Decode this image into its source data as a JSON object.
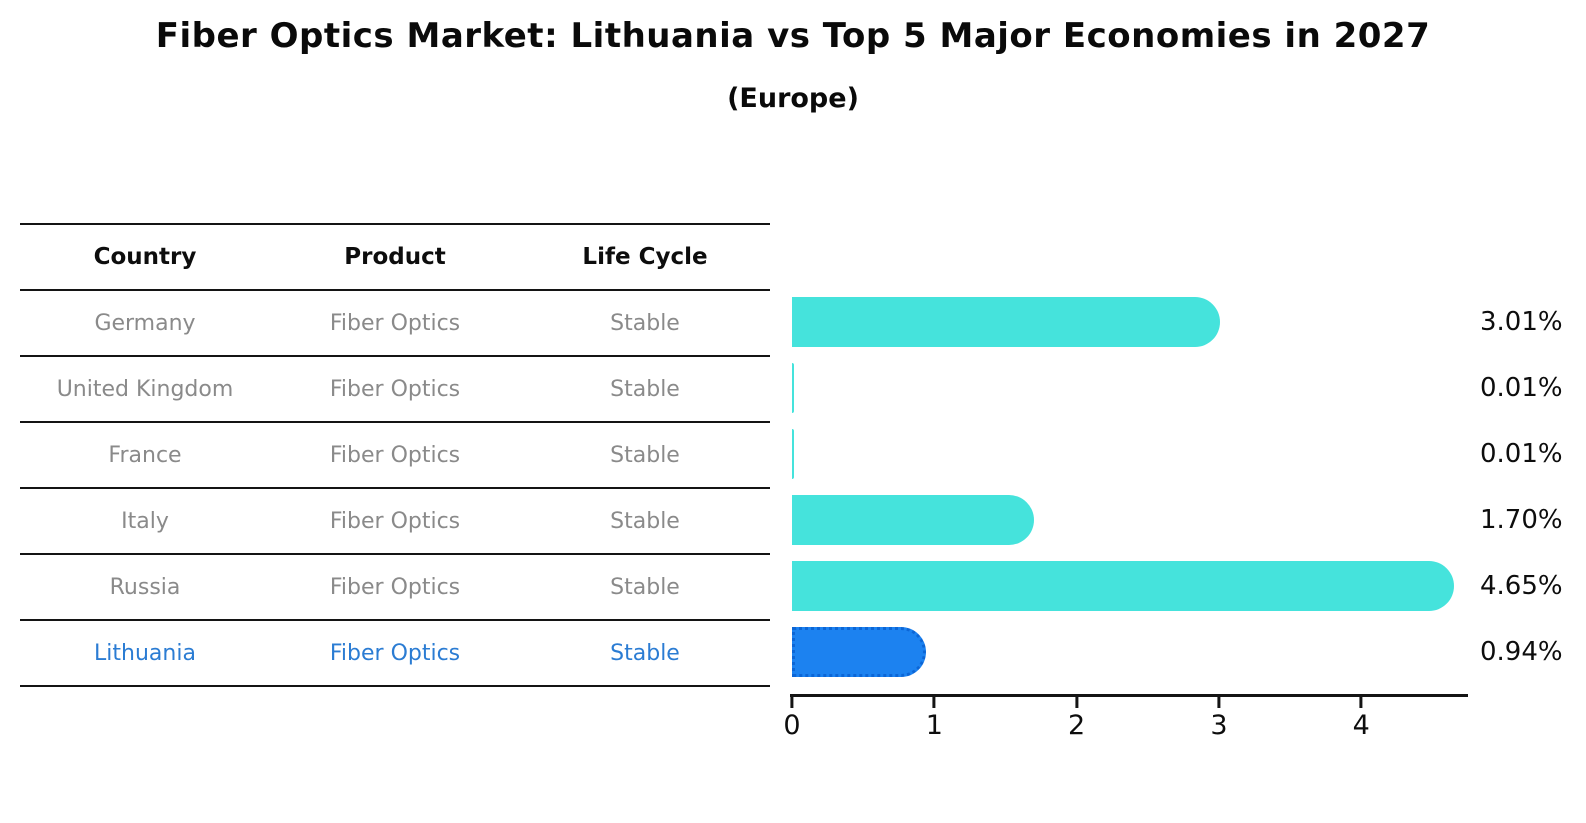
{
  "title": "Fiber Optics Market: Lithuania vs Top 5 Major Economies in 2027",
  "subtitle": "(Europe)",
  "table": {
    "headers": [
      "Country",
      "Product",
      "Life Cycle"
    ],
    "highlight_row": 5,
    "rows": [
      {
        "country": "Germany",
        "product": "Fiber Optics",
        "life_cycle": "Stable"
      },
      {
        "country": "United Kingdom",
        "product": "Fiber Optics",
        "life_cycle": "Stable"
      },
      {
        "country": "France",
        "product": "Fiber Optics",
        "life_cycle": "Stable"
      },
      {
        "country": "Italy",
        "product": "Fiber Optics",
        "life_cycle": "Stable"
      },
      {
        "country": "Russia",
        "product": "Fiber Optics",
        "life_cycle": "Stable"
      },
      {
        "country": "Lithuania",
        "product": "Fiber Optics",
        "life_cycle": "Stable"
      }
    ]
  },
  "chart_data": {
    "type": "bar",
    "orientation": "horizontal",
    "title": "Fiber Optics Market: Lithuania vs Top 5 Major Economies in 2027",
    "subtitle": "(Europe)",
    "categories": [
      "Germany",
      "United Kingdom",
      "France",
      "Italy",
      "Russia",
      "Lithuania"
    ],
    "values": [
      3.01,
      0.01,
      0.01,
      1.7,
      4.65,
      0.94
    ],
    "labels": [
      "3.01%",
      "0.01%",
      "0.01%",
      "1.70%",
      "4.65%",
      "0.94%"
    ],
    "highlight_index": 5,
    "xlim": [
      0,
      4.75
    ],
    "xticks": [
      0,
      1,
      2,
      3,
      4
    ],
    "grid": false,
    "legend": false
  },
  "colors": {
    "bar": "#45e3dc",
    "highlight_bar": "#1c82f0",
    "highlight_border": "#0c66d6",
    "highlight_text": "#2b7cd3",
    "table_text": "#8a8a8a",
    "line": "#141414"
  }
}
